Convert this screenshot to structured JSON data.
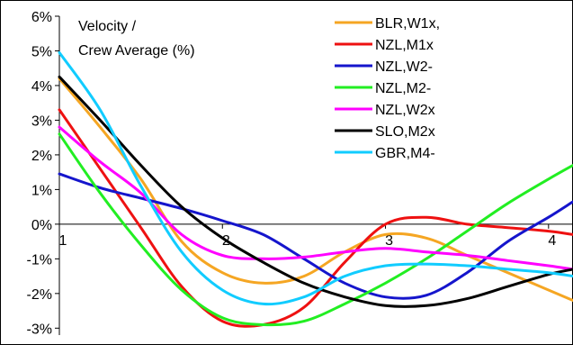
{
  "chart_data": {
    "type": "line",
    "title_lines": [
      "Velocity /",
      "Crew Average (%)"
    ],
    "xlabel": "",
    "ylabel": "",
    "x_ticks": [
      1,
      2,
      3,
      4
    ],
    "xlim": [
      1,
      4.15
    ],
    "y_ticks": [
      "6%",
      "5%",
      "4%",
      "3%",
      "2%",
      "1%",
      "0%",
      "-1%",
      "-2%",
      "-3%"
    ],
    "ylim": [
      -3.2,
      6
    ],
    "grid": false,
    "legend_position": "top-right",
    "x": [
      1.0,
      1.25,
      1.5,
      1.75,
      2.0,
      2.25,
      2.5,
      2.75,
      3.0,
      3.25,
      3.5,
      3.75,
      4.0,
      4.15
    ],
    "series": [
      {
        "name": "BLR,W1x,",
        "color": "#f5a623",
        "values": [
          4.2,
          2.8,
          1.3,
          -0.5,
          -1.4,
          -1.7,
          -1.5,
          -0.8,
          -0.3,
          -0.4,
          -0.9,
          -1.4,
          -1.9,
          -2.2
        ]
      },
      {
        "name": "NZL,M1x",
        "color": "#ee1111",
        "values": [
          3.3,
          1.6,
          -0.1,
          -1.8,
          -2.8,
          -2.9,
          -2.4,
          -1.1,
          0.0,
          0.2,
          0.0,
          -0.1,
          -0.2,
          -0.3
        ]
      },
      {
        "name": "NZL,W2-",
        "color": "#1515cc",
        "values": [
          1.45,
          1.05,
          0.75,
          0.45,
          0.1,
          -0.3,
          -1.0,
          -1.7,
          -2.1,
          -2.05,
          -1.4,
          -0.5,
          0.2,
          0.65
        ]
      },
      {
        "name": "NZL,M2-",
        "color": "#22ee22",
        "values": [
          2.6,
          0.9,
          -0.6,
          -1.9,
          -2.7,
          -2.9,
          -2.8,
          -2.3,
          -1.7,
          -1.0,
          -0.2,
          0.6,
          1.3,
          1.7
        ]
      },
      {
        "name": "NZL,W2x",
        "color": "#ff00ff",
        "values": [
          2.8,
          1.8,
          0.9,
          -0.3,
          -0.9,
          -1.0,
          -0.95,
          -0.8,
          -0.7,
          -0.8,
          -0.9,
          -1.05,
          -1.2,
          -1.3
        ]
      },
      {
        "name": "SLO,M2x",
        "color": "#000000",
        "values": [
          4.25,
          3.0,
          1.7,
          0.5,
          -0.4,
          -1.1,
          -1.7,
          -2.1,
          -2.35,
          -2.35,
          -2.15,
          -1.8,
          -1.45,
          -1.3
        ]
      },
      {
        "name": "GBR,M4-",
        "color": "#11ccff",
        "values": [
          4.95,
          3.3,
          1.1,
          -0.8,
          -1.9,
          -2.3,
          -2.1,
          -1.5,
          -1.2,
          -1.15,
          -1.2,
          -1.3,
          -1.4,
          -1.5
        ]
      }
    ]
  }
}
